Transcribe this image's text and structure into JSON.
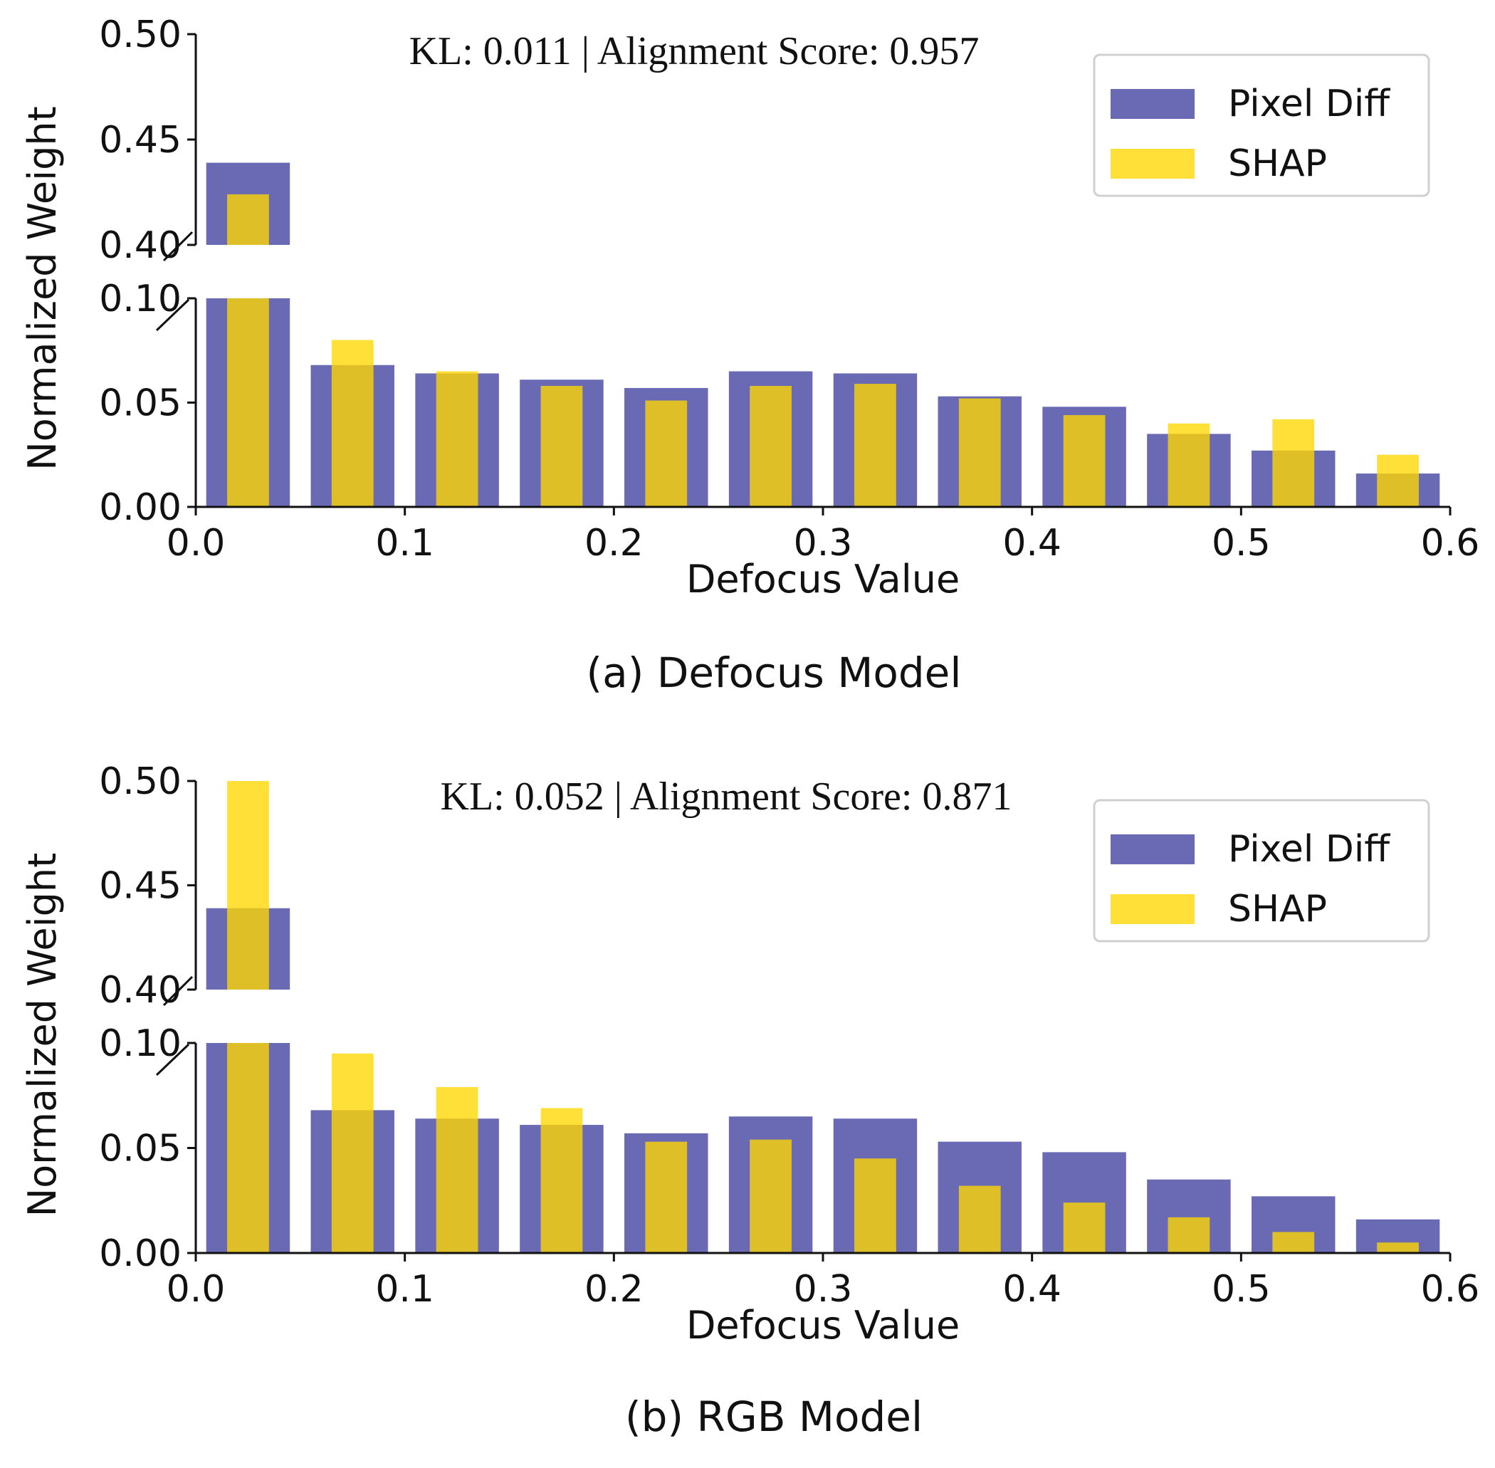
{
  "chart_data": [
    {
      "type": "bar",
      "title": "",
      "caption": "(a) Defocus Model",
      "annotation": "KL: 0.011 | Alignment Score: 0.957",
      "xlabel": "Defocus Value",
      "ylabel": "Normalized Weight",
      "xlim": [
        0.0,
        0.6
      ],
      "ylim_lower": [
        0.0,
        0.1
      ],
      "ylim_upper": [
        0.4,
        0.5
      ],
      "xticks": [
        "0.0",
        "0.1",
        "0.2",
        "0.3",
        "0.4",
        "0.5",
        "0.6"
      ],
      "yticks_lower": [
        "0.00",
        "0.05",
        "0.10"
      ],
      "yticks_upper": [
        "0.40",
        "0.45",
        "0.50"
      ],
      "bin_centers": [
        0.025,
        0.075,
        0.125,
        0.175,
        0.225,
        0.275,
        0.325,
        0.375,
        0.425,
        0.475,
        0.525,
        0.575
      ],
      "legend": "top-right",
      "series": [
        {
          "name": "Pixel Diff",
          "color": "#6a6ab4",
          "width": 0.04,
          "values": [
            0.439,
            0.068,
            0.064,
            0.061,
            0.057,
            0.065,
            0.064,
            0.053,
            0.048,
            0.035,
            0.027,
            0.016
          ]
        },
        {
          "name": "SHAP",
          "color": "#ffd700",
          "width": 0.02,
          "values": [
            0.424,
            0.08,
            0.065,
            0.058,
            0.051,
            0.058,
            0.059,
            0.052,
            0.044,
            0.04,
            0.042,
            0.025
          ]
        }
      ]
    },
    {
      "type": "bar",
      "title": "",
      "caption": "(b) RGB Model",
      "annotation": "KL: 0.052 | Alignment Score: 0.871",
      "xlabel": "Defocus Value",
      "ylabel": "Normalized Weight",
      "xlim": [
        0.0,
        0.6
      ],
      "ylim_lower": [
        0.0,
        0.1
      ],
      "ylim_upper": [
        0.4,
        0.5
      ],
      "xticks": [
        "0.0",
        "0.1",
        "0.2",
        "0.3",
        "0.4",
        "0.5",
        "0.6"
      ],
      "yticks_lower": [
        "0.00",
        "0.05",
        "0.10"
      ],
      "yticks_upper": [
        "0.40",
        "0.45",
        "0.50"
      ],
      "bin_centers": [
        0.025,
        0.075,
        0.125,
        0.175,
        0.225,
        0.275,
        0.325,
        0.375,
        0.425,
        0.475,
        0.525,
        0.575
      ],
      "legend": "top-right",
      "series": [
        {
          "name": "Pixel Diff",
          "color": "#6a6ab4",
          "width": 0.04,
          "values": [
            0.439,
            0.068,
            0.064,
            0.061,
            0.057,
            0.065,
            0.064,
            0.053,
            0.048,
            0.035,
            0.027,
            0.016
          ]
        },
        {
          "name": "SHAP",
          "color": "#ffd700",
          "width": 0.02,
          "values": [
            0.5,
            0.095,
            0.079,
            0.069,
            0.053,
            0.054,
            0.045,
            0.032,
            0.024,
            0.017,
            0.01,
            0.005
          ]
        }
      ]
    }
  ]
}
